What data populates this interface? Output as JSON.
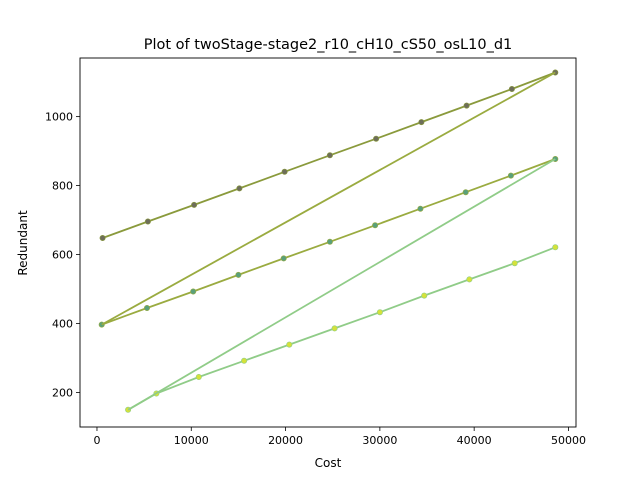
{
  "chart_data": {
    "type": "line",
    "title": "Plot of twoStage-stage2_r10_cH10_cS50_osL10_d1",
    "xlabel": "Cost",
    "ylabel": "Redundant",
    "xlim": [
      -1800,
      50800
    ],
    "ylim": [
      100,
      1170
    ],
    "xticks": [
      {
        "value": 0,
        "label": "0"
      },
      {
        "value": 10000,
        "label": "10000"
      },
      {
        "value": 20000,
        "label": "20000"
      },
      {
        "value": 30000,
        "label": "30000"
      },
      {
        "value": 40000,
        "label": "40000"
      },
      {
        "value": 50000,
        "label": "50000"
      }
    ],
    "yticks": [
      {
        "value": 200,
        "label": "200"
      },
      {
        "value": 400,
        "label": "400"
      },
      {
        "value": 600,
        "label": "600"
      },
      {
        "value": 800,
        "label": "800"
      },
      {
        "value": 1000,
        "label": "1000"
      }
    ],
    "grid": false,
    "legend": "none",
    "series": [
      {
        "color": "#8a9a3c",
        "marker_color": "#6e6e5a",
        "x": [
          600,
          5400,
          10300,
          15100,
          19900,
          24700,
          29600,
          34400,
          39200,
          44000,
          48600
        ],
        "y": [
          648,
          696,
          744,
          792,
          840,
          888,
          936,
          984,
          1032,
          1080,
          1128
        ]
      },
      {
        "color": "#9aab40",
        "marker_color": "#5aa07a",
        "x": [
          500,
          5300,
          10200,
          15000,
          19800,
          24700,
          29500,
          34300,
          39100,
          43900,
          48600
        ],
        "y": [
          397,
          445,
          493,
          541,
          589,
          637,
          685,
          733,
          781,
          829,
          877
        ]
      },
      {
        "color": "#90cc88",
        "marker_color": "#d4e23a",
        "x": [
          3300,
          6300,
          10800,
          15600,
          20400,
          25200,
          30000,
          34700,
          39500,
          44300,
          48600
        ],
        "y": [
          150,
          197,
          245,
          292,
          339,
          386,
          433,
          481,
          528,
          575,
          621
        ]
      },
      {
        "color": "#9aab40",
        "marker_color": "none",
        "x": [
          500,
          48600
        ],
        "y": [
          397,
          1128
        ]
      },
      {
        "color": "#90cc88",
        "marker_color": "none",
        "x": [
          3300,
          48600
        ],
        "y": [
          150,
          877
        ]
      }
    ]
  }
}
